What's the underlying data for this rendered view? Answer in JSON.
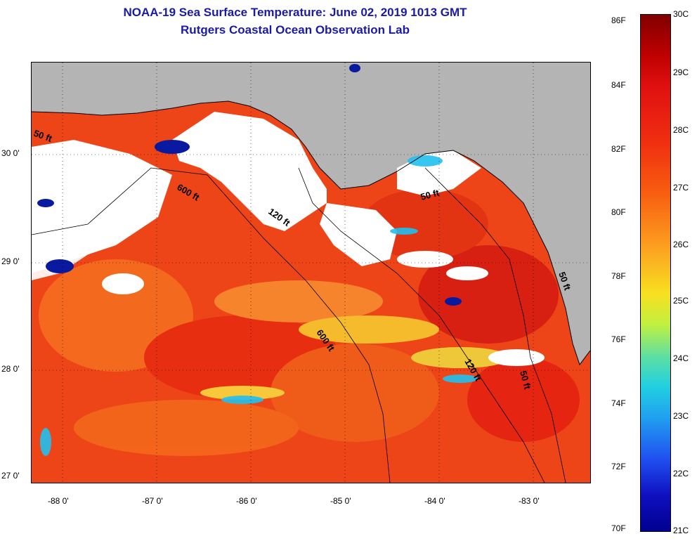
{
  "title": {
    "line1": "NOAA-19 Sea Surface Temperature:  June 02, 2019 1013 GMT",
    "line2": "Rutgers Coastal Ocean Observation Lab"
  },
  "map": {
    "lat_labels": [
      "30 0'",
      "29 0'",
      "28 0'",
      "27 0'"
    ],
    "lon_labels": [
      "-88 0'",
      "-87 0'",
      "-86 0'",
      "-85 0'",
      "-84 0'",
      "-83 0'"
    ],
    "contour_labels": [
      "50 ft",
      "600 ft",
      "120 ft",
      "50 ft",
      "600 ft",
      "120 ft",
      "50 ft",
      "50 ft"
    ],
    "colors": {
      "land": "#b4b4b4",
      "cloud": "#ffffff",
      "warm": "#f04010",
      "cool": "#0a1aa0"
    }
  },
  "colorbar": {
    "fahrenheit_labels": [
      "86F",
      "84F",
      "82F",
      "80F",
      "78F",
      "76F",
      "74F",
      "72F",
      "70F"
    ],
    "celsius_labels": [
      "30C",
      "29C",
      "28C",
      "27C",
      "26C",
      "25C",
      "24C",
      "23C",
      "22C",
      "21C"
    ]
  }
}
